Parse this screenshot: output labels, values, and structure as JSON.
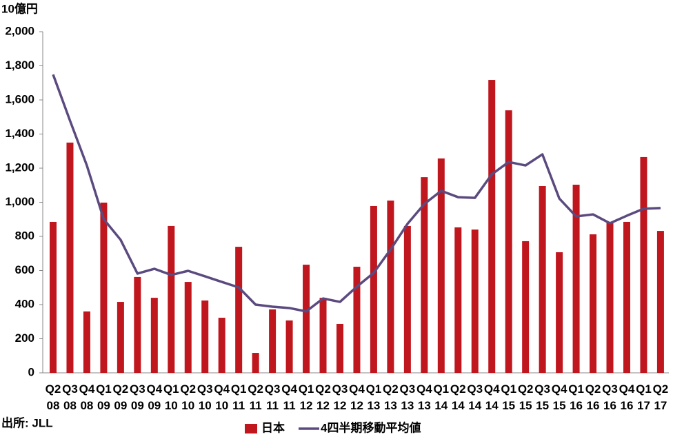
{
  "chart_data": {
    "type": "bar-line",
    "y_axis_label": "10億円",
    "source": "出所: JLL",
    "categories": [
      "Q2 08",
      "Q3 08",
      "Q4 08",
      "Q1 09",
      "Q2 09",
      "Q3 09",
      "Q4 09",
      "Q1 10",
      "Q2 10",
      "Q3 10",
      "Q4 10",
      "Q1 11",
      "Q2 11",
      "Q3 11",
      "Q4 11",
      "Q1 12",
      "Q2 12",
      "Q3 12",
      "Q4 12",
      "Q1 13",
      "Q2 13",
      "Q3 13",
      "Q4 13",
      "Q1 14",
      "Q2 14",
      "Q3 14",
      "Q4 14",
      "Q1 15",
      "Q2 15",
      "Q3 15",
      "Q4 15",
      "Q1 16",
      "Q2 16",
      "Q3 16",
      "Q4 16",
      "Q1 17",
      "Q2 17"
    ],
    "series": [
      {
        "name": "日本",
        "type": "bar",
        "color": "#c0161e",
        "values": [
          885,
          1350,
          360,
          998,
          416,
          562,
          440,
          861,
          533,
          424,
          323,
          739,
          117,
          372,
          307,
          634,
          440,
          287,
          622,
          978,
          1010,
          861,
          1147,
          1257,
          853,
          840,
          1717,
          1539,
          772,
          1095,
          707,
          1103,
          812,
          885,
          885,
          1265,
          832
        ]
      },
      {
        "name": "4四半期移動平均値",
        "type": "line",
        "color": "#5b4a7f",
        "values": [
          1749,
          1479,
          1216,
          901,
          780,
          582,
          610,
          574,
          598,
          566,
          533,
          501,
          400,
          388,
          380,
          360,
          436,
          416,
          505,
          586,
          723,
          873,
          990,
          1067,
          1030,
          1026,
          1164,
          1236,
          1216,
          1281,
          1022,
          917,
          929,
          877,
          921,
          962,
          966
        ]
      }
    ],
    "ylim": [
      0,
      2000
    ],
    "yticks": [
      0,
      200,
      400,
      600,
      800,
      {
        "value": 1000,
        "label": "1,000"
      },
      {
        "value": 1200,
        "label": "1,200"
      },
      {
        "value": 1400,
        "label": "1,400"
      },
      {
        "value": 1600,
        "label": "1,600"
      },
      {
        "value": 1800,
        "label": "1,800"
      },
      {
        "value": 2000,
        "label": "2,000"
      }
    ],
    "legend": "bottom"
  }
}
